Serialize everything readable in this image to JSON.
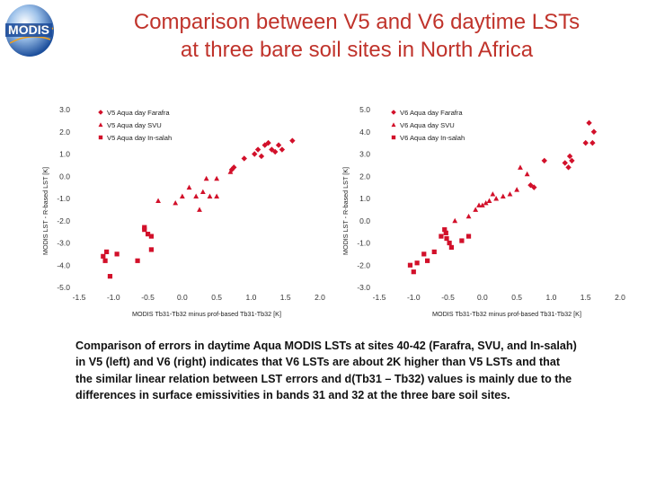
{
  "logo": {
    "text": "MODIS"
  },
  "title": {
    "line1": "Comparison between V5 and V6 daytime LSTs",
    "line2": "at three bare soil sites in North Africa"
  },
  "caption": "Comparison of errors in daytime Aqua MODIS LSTs at sites 40-42 (Farafra, SVU, and In-salah) in V5 (left) and V6 (right) indicates that V6 LSTs are about 2K higher than V5 LSTs and that the similar linear relation between LST errors and d(Tb31 – Tb32) values is mainly due to the differences in surface emissivities in bands 31 and 32 at the three bare soil sites.",
  "colors": {
    "title": "#c0332b",
    "markers": "#d2102a",
    "tick_text": "#333333"
  },
  "chart_data": [
    {
      "type": "scatter",
      "xlabel": "MODIS Tb31-Tb32 minus prof-based Tb31-Tb32 [K]",
      "ylabel": "MODIS LST - R-based LST [K]",
      "xlim": [
        -1.5,
        2.0
      ],
      "ylim": [
        -5.0,
        3.0
      ],
      "x_ticks": [
        "-1.5",
        "-1.0",
        "-0.5",
        "0.0",
        "0.5",
        "1.0",
        "1.5",
        "2.0"
      ],
      "y_ticks": [
        "3.0",
        "2.0",
        "1.0",
        "0.0",
        "-1.0",
        "-2.0",
        "-3.0",
        "-4.0",
        "-5.0"
      ],
      "legend_position": "top-left",
      "series": [
        {
          "name": "V5 Aqua day Farafra",
          "marker": "diamond",
          "points": [
            [
              0.72,
              0.3
            ],
            [
              0.75,
              0.4
            ],
            [
              0.9,
              0.8
            ],
            [
              1.05,
              1.0
            ],
            [
              1.1,
              1.2
            ],
            [
              1.15,
              0.9
            ],
            [
              1.2,
              1.4
            ],
            [
              1.25,
              1.5
            ],
            [
              1.3,
              1.2
            ],
            [
              1.35,
              1.1
            ],
            [
              1.4,
              1.4
            ],
            [
              1.45,
              1.2
            ],
            [
              1.6,
              1.6
            ]
          ]
        },
        {
          "name": "V5 Aqua day SVU",
          "marker": "triangle",
          "points": [
            [
              -0.35,
              -1.1
            ],
            [
              -0.1,
              -1.2
            ],
            [
              0.0,
              -0.9
            ],
            [
              0.1,
              -0.5
            ],
            [
              0.2,
              -0.9
            ],
            [
              0.3,
              -0.7
            ],
            [
              0.35,
              -0.1
            ],
            [
              0.4,
              -0.9
            ],
            [
              0.5,
              -0.9
            ],
            [
              0.25,
              -1.5
            ],
            [
              0.5,
              -0.1
            ],
            [
              0.7,
              0.2
            ]
          ]
        },
        {
          "name": "V5 Aqua day In-salah",
          "marker": "square",
          "points": [
            [
              -1.15,
              -3.6
            ],
            [
              -1.12,
              -3.8
            ],
            [
              -1.1,
              -3.4
            ],
            [
              -1.05,
              -4.5
            ],
            [
              -0.95,
              -3.5
            ],
            [
              -0.65,
              -3.8
            ],
            [
              -0.55,
              -2.4
            ],
            [
              -0.55,
              -2.3
            ],
            [
              -0.5,
              -2.6
            ],
            [
              -0.45,
              -2.7
            ],
            [
              -0.45,
              -3.3
            ]
          ]
        }
      ]
    },
    {
      "type": "scatter",
      "xlabel": "MODIS Tb31-Tb32 minus prof-based Tb31-Tb32 [K]",
      "ylabel": "MODIS LST - R-based LST [K]",
      "xlim": [
        -1.5,
        2.0
      ],
      "ylim": [
        -3.0,
        5.0
      ],
      "x_ticks": [
        "-1.5",
        "-1.0",
        "-0.5",
        "0.0",
        "0.5",
        "1.0",
        "1.5",
        "2.0"
      ],
      "y_ticks": [
        "5.0",
        "4.0",
        "3.0",
        "2.0",
        "1.0",
        "0.0",
        "-1.0",
        "-2.0",
        "-3.0"
      ],
      "legend_position": "top-right",
      "series": [
        {
          "name": "V6 Aqua day Farafra",
          "marker": "diamond",
          "points": [
            [
              0.7,
              1.6
            ],
            [
              0.75,
              1.5
            ],
            [
              0.9,
              2.7
            ],
            [
              1.2,
              2.6
            ],
            [
              1.25,
              2.4
            ],
            [
              1.27,
              2.9
            ],
            [
              1.3,
              2.7
            ],
            [
              1.5,
              3.5
            ],
            [
              1.55,
              4.4
            ],
            [
              1.6,
              3.5
            ],
            [
              1.62,
              4.0
            ]
          ]
        },
        {
          "name": "V6 Aqua day SVU",
          "marker": "triangle",
          "points": [
            [
              -0.4,
              0.0
            ],
            [
              -0.2,
              0.2
            ],
            [
              -0.1,
              0.5
            ],
            [
              -0.05,
              0.7
            ],
            [
              0.0,
              0.7
            ],
            [
              0.05,
              0.8
            ],
            [
              0.1,
              0.9
            ],
            [
              0.15,
              1.2
            ],
            [
              0.2,
              1.0
            ],
            [
              0.3,
              1.1
            ],
            [
              0.4,
              1.2
            ],
            [
              0.5,
              1.4
            ],
            [
              0.55,
              2.4
            ],
            [
              0.65,
              2.1
            ]
          ]
        },
        {
          "name": "V6 Aqua day In-salah",
          "marker": "square",
          "points": [
            [
              -1.05,
              -2.0
            ],
            [
              -1.0,
              -2.3
            ],
            [
              -0.95,
              -1.9
            ],
            [
              -0.85,
              -1.5
            ],
            [
              -0.8,
              -1.8
            ],
            [
              -0.7,
              -1.4
            ],
            [
              -0.6,
              -0.7
            ],
            [
              -0.55,
              -0.4
            ],
            [
              -0.53,
              -0.55
            ],
            [
              -0.52,
              -0.8
            ],
            [
              -0.48,
              -1.0
            ],
            [
              -0.45,
              -1.2
            ],
            [
              -0.3,
              -0.9
            ],
            [
              -0.2,
              -0.7
            ]
          ]
        }
      ]
    }
  ]
}
